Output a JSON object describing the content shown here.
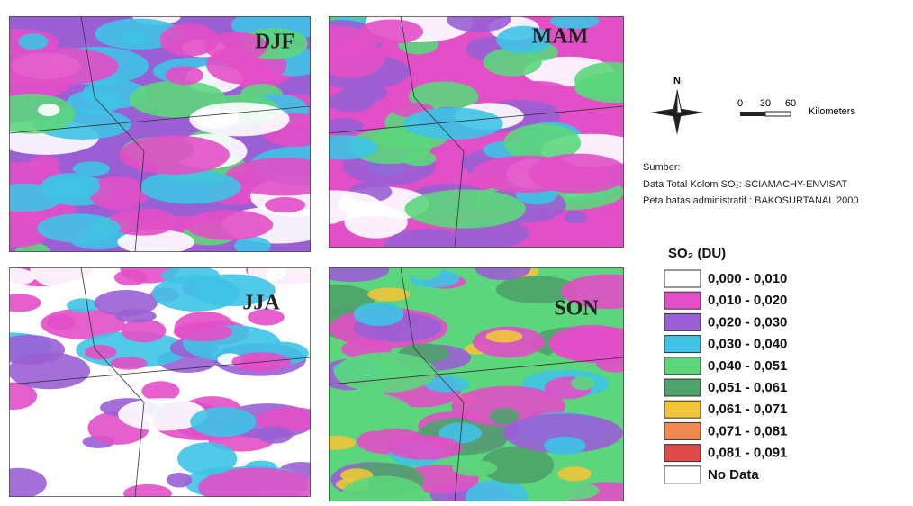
{
  "panels": [
    {
      "label": "DJF"
    },
    {
      "label": "MAM"
    },
    {
      "label": "JJA"
    },
    {
      "label": "SON"
    }
  ],
  "north_label": "N",
  "scale_bar": {
    "ticks": [
      "0",
      "30",
      "60"
    ],
    "unit": "Kilometers"
  },
  "source": {
    "title": "Sumber:",
    "lines": [
      "Data Total Kolom SO₂: SCIAMACHY-ENVISAT",
      "Peta batas administratif : BAKOSURTANAL 2000"
    ]
  },
  "legend": {
    "title": "SO₂ (DU)",
    "items": [
      {
        "label": "0,000 - 0,010",
        "color": "#ffffff"
      },
      {
        "label": "0,010 - 0,020",
        "color": "#e24fc6"
      },
      {
        "label": "0,020 - 0,030",
        "color": "#9a5fd4"
      },
      {
        "label": "0,030 - 0,040",
        "color": "#3ec3e6"
      },
      {
        "label": "0,040 - 0,051",
        "color": "#5cd67c"
      },
      {
        "label": "0,051 - 0,061",
        "color": "#4fa26a"
      },
      {
        "label": "0,061 - 0,071",
        "color": "#f0c53a"
      },
      {
        "label": "0,071 - 0,081",
        "color": "#f08a52"
      },
      {
        "label": "0,081 - 0,091",
        "color": "#de4a4a"
      },
      {
        "label": "No Data",
        "color": "#ffffff"
      }
    ]
  }
}
